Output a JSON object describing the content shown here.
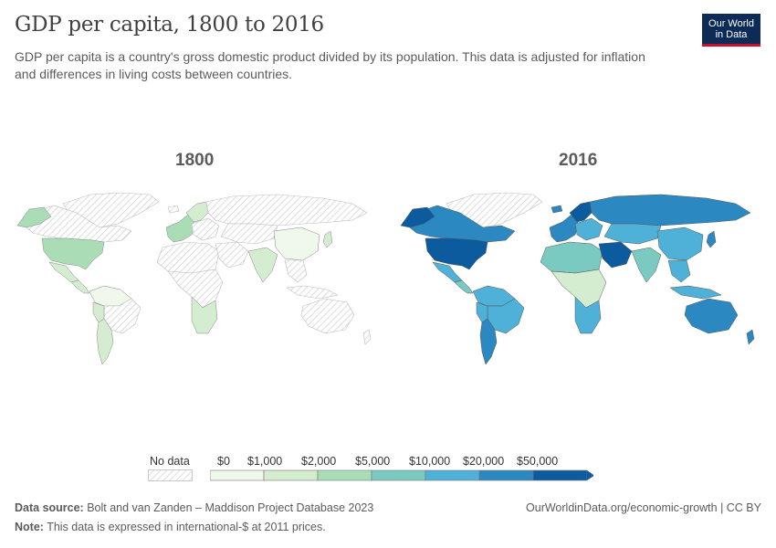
{
  "title": "GDP per capita, 1800 to 2016",
  "subtitle": "GDP per capita is a country's gross domestic product divided by its population. This data is adjusted for inflation and differences in living costs between countries.",
  "logo": {
    "line1": "Our World",
    "line2": "in Data"
  },
  "maps": [
    {
      "year": "1800"
    },
    {
      "year": "2016"
    }
  ],
  "legend": {
    "no_data_label": "No data",
    "bins": [
      "$0",
      "$1,000",
      "$2,000",
      "$5,000",
      "$10,000",
      "$20,000",
      "$50,000"
    ],
    "colors": [
      "#eff8ea",
      "#d4ecd0",
      "#aadcb6",
      "#7bcac2",
      "#4fb0d8",
      "#2b88c0",
      "#0b5b9e"
    ],
    "no_data_color": "#e6e6e6"
  },
  "footer": {
    "source_label": "Data source:",
    "source_text": "Bolt and van Zanden – Maddison Project Database 2023",
    "note_label": "Note:",
    "note_text": "This data is expressed in international-$ at 2011 prices.",
    "right_text": "OurWorldinData.org/economic-growth | CC BY"
  }
}
